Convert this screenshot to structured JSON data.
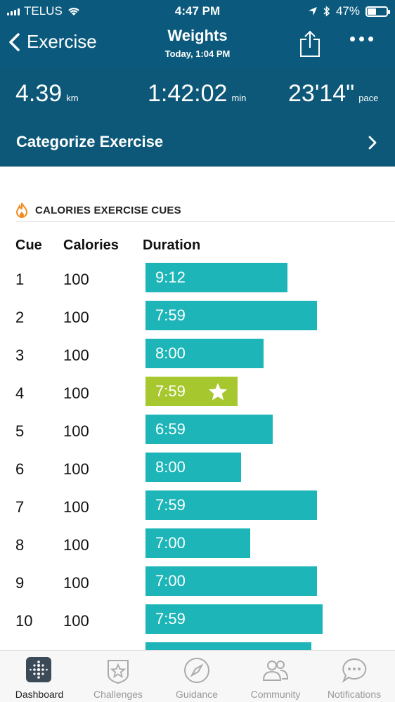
{
  "status_bar": {
    "carrier": "TELUS",
    "time": "4:47 PM",
    "battery": "47%",
    "battery_level": 0.47
  },
  "nav": {
    "back_label": "Exercise",
    "title": "Weights",
    "subtitle": "Today, 1:04 PM"
  },
  "stats": {
    "distance": {
      "value": "4.39",
      "unit": "km"
    },
    "duration": {
      "value": "1:42:02",
      "unit": "min"
    },
    "pace": {
      "value": "23'14\"",
      "unit": "pace"
    }
  },
  "categorize": {
    "label": "Categorize Exercise"
  },
  "cues": {
    "section_title": "CALORIES EXERCISE CUES",
    "headers": {
      "cue": "Cue",
      "calories": "Calories",
      "duration": "Duration"
    },
    "max_seconds": 540,
    "rows": [
      {
        "cue": "1",
        "calories": "100",
        "duration": "9:12",
        "seconds": 552,
        "best": false
      },
      {
        "cue": "2",
        "calories": "100",
        "duration": "7:59",
        "seconds": 479,
        "best": false
      },
      {
        "cue": "3",
        "calories": "100",
        "duration": "8:00",
        "seconds": 480,
        "best": false
      },
      {
        "cue": "4",
        "calories": "100",
        "duration": "7:59",
        "seconds": 479,
        "best": true
      },
      {
        "cue": "5",
        "calories": "100",
        "duration": "6:59",
        "seconds": 419,
        "best": false
      },
      {
        "cue": "6",
        "calories": "100",
        "duration": "8:00",
        "seconds": 480,
        "best": false
      },
      {
        "cue": "7",
        "calories": "100",
        "duration": "7:59",
        "seconds": 479,
        "best": false
      },
      {
        "cue": "8",
        "calories": "100",
        "duration": "7:00",
        "seconds": 420,
        "best": false
      },
      {
        "cue": "9",
        "calories": "100",
        "duration": "7:00",
        "seconds": 420,
        "best": false
      },
      {
        "cue": "10",
        "calories": "100",
        "duration": "7:59",
        "seconds": 479,
        "best": false
      }
    ],
    "bar_fill": [
      0.77,
      0.93,
      0.64,
      0.5,
      0.69,
      0.52,
      0.93,
      0.57,
      0.93,
      0.96
    ]
  },
  "colors": {
    "header_bg": "#0b5a7d",
    "bar": "#1db5b7",
    "best_bar": "#a7c72f"
  },
  "tabs": [
    {
      "label": "Dashboard",
      "icon": "dashboard-icon",
      "active": true
    },
    {
      "label": "Challenges",
      "icon": "challenges-icon",
      "active": false
    },
    {
      "label": "Guidance",
      "icon": "compass-icon",
      "active": false
    },
    {
      "label": "Community",
      "icon": "community-icon",
      "active": false
    },
    {
      "label": "Notifications",
      "icon": "notifications-icon",
      "active": false
    }
  ]
}
